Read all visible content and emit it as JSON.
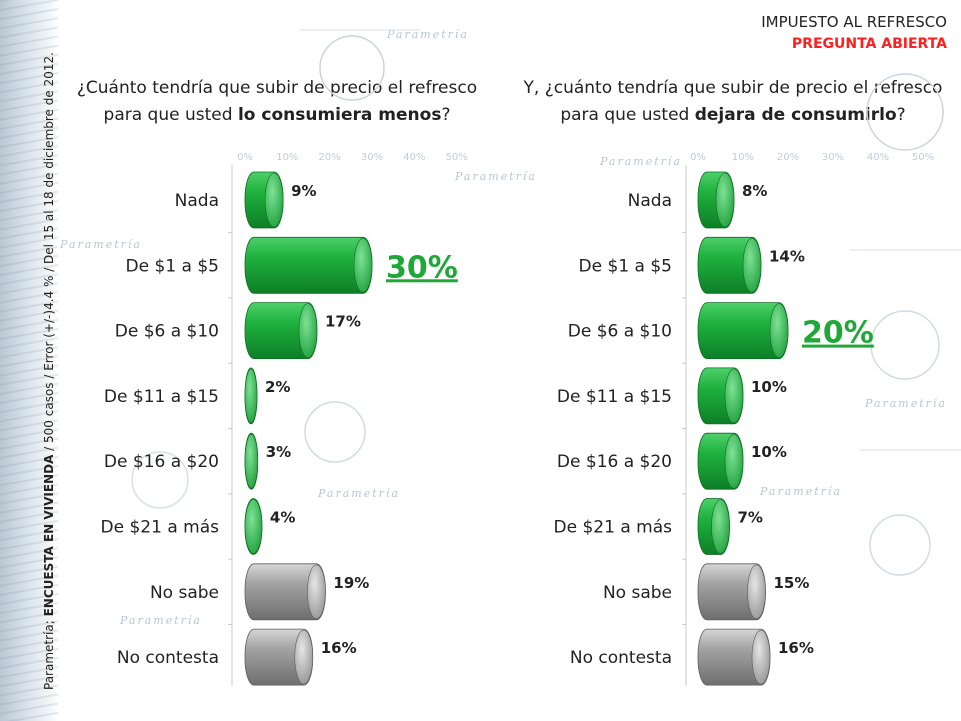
{
  "header": {
    "title": "IMPUESTO AL REFRESCO",
    "subtitle": "PREGUNTA ABIERTA"
  },
  "source": {
    "brand": "Parametría; ",
    "survey": "ENCUESTA EN VIVIENDA",
    "details": " / 500 casos / Error (+/-)4.4 % / Del 15  al 18 de diciembre de 2012."
  },
  "watermark": "Parametría",
  "colors": {
    "green": "#1fb23e",
    "gray": "#a3a3a3",
    "highlight_label": "#1fa838",
    "text": "#222222",
    "subtitle_red": "#ff1f1f"
  },
  "chart_data": [
    {
      "type": "bar",
      "orientation": "horizontal",
      "question": {
        "before": "¿Cuánto tendría que subir de precio el refresco para que usted ",
        "bold": "lo consumiera menos",
        "after": "?"
      },
      "categories": [
        "Nada",
        "De $1 a $5",
        "De $6 a $10",
        "De $11 a $15",
        "De $16 a $20",
        "De $21 a más",
        "No sabe",
        "No contesta"
      ],
      "values": [
        9,
        30,
        17,
        2,
        3,
        4,
        19,
        16
      ],
      "labels": [
        "9%",
        "30%",
        "17%",
        "2%",
        "3%",
        "4%",
        "19%",
        "16%"
      ],
      "bar_colors": [
        "green",
        "green",
        "green",
        "green",
        "green",
        "green",
        "gray",
        "gray"
      ],
      "highlight_index": 1,
      "axis_ticks": [
        "0%",
        "10%",
        "20%",
        "30%",
        "40%",
        "50%"
      ],
      "xlim": [
        0,
        50
      ]
    },
    {
      "type": "bar",
      "orientation": "horizontal",
      "question": {
        "before": "Y, ¿cuánto tendría que subir de precio el refresco para que usted ",
        "bold": "dejara de consumirlo",
        "after": "?"
      },
      "categories": [
        "Nada",
        "De $1 a $5",
        "De $6 a $10",
        "De $11 a $15",
        "De $16 a $20",
        "De $21 a más",
        "No sabe",
        "No contesta"
      ],
      "values": [
        8,
        14,
        20,
        10,
        10,
        7,
        15,
        16
      ],
      "labels": [
        "8%",
        "14%",
        "20%",
        "10%",
        "10%",
        "7%",
        "15%",
        "16%"
      ],
      "bar_colors": [
        "green",
        "green",
        "green",
        "green",
        "green",
        "green",
        "gray",
        "gray"
      ],
      "highlight_index": 2,
      "axis_ticks": [
        "0%",
        "10%",
        "20%",
        "30%",
        "40%",
        "50%"
      ],
      "xlim": [
        0,
        50
      ]
    }
  ]
}
